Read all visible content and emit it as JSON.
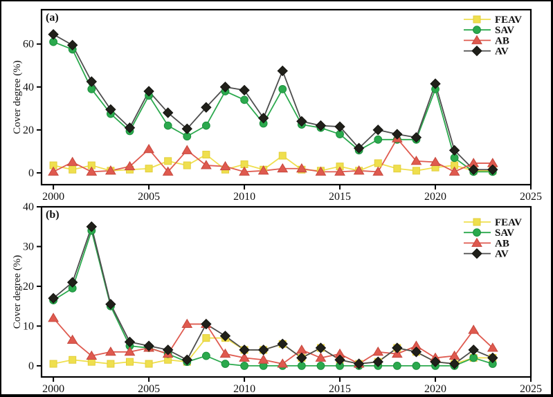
{
  "figure": {
    "background": "#ffffff",
    "frame_color": "#000000"
  },
  "chart_data": [
    {
      "panel_label": "(a)",
      "type": "line",
      "title": "",
      "xlabel": "",
      "ylabel": "Cover degree (%)",
      "grid": false,
      "legend_position": "top-right",
      "xlim": [
        1999.38,
        2025.0
      ],
      "ylim": [
        -5.5,
        76.0
      ],
      "xticks": [
        2000,
        2005,
        2010,
        2015,
        2020,
        2025
      ],
      "yticks": [
        0,
        20,
        40,
        60
      ],
      "x": [
        2000,
        2001,
        2002,
        2003,
        2004,
        2005,
        2006,
        2007,
        2008,
        2009,
        2010,
        2011,
        2012,
        2013,
        2014,
        2015,
        2016,
        2017,
        2018,
        2019,
        2020,
        2021,
        2022,
        2023
      ],
      "series": [
        {
          "name": "FEAV",
          "marker": "square",
          "color": "#EFDF4E",
          "edge": "#E2CE3B",
          "values": [
            3.5,
            1.5,
            3.5,
            1,
            1.5,
            2,
            5.5,
            3.5,
            8.5,
            1.5,
            4,
            1.5,
            8,
            1.5,
            1,
            3,
            1,
            4.5,
            2,
            1,
            2.5,
            3.5,
            1,
            1
          ]
        },
        {
          "name": "SAV",
          "marker": "circle",
          "color": "#2BA94D",
          "edge": "#1A8F3C",
          "values": [
            61,
            57.5,
            39,
            27.5,
            19.5,
            36,
            22,
            17,
            22,
            38,
            34,
            23,
            39,
            22.5,
            21,
            18,
            10.5,
            15.5,
            15.5,
            15.5,
            39,
            7,
            0.5,
            0.5
          ]
        },
        {
          "name": "AB",
          "marker": "triangle",
          "color": "#DF5A4F",
          "edge": "#C6463C",
          "values": [
            0.5,
            5,
            0.5,
            1,
            3,
            11,
            0.5,
            10.5,
            3.5,
            3,
            0.5,
            1,
            2,
            2,
            0.5,
            0.5,
            1,
            0.5,
            16,
            5.5,
            5,
            0.5,
            4.5,
            4.5
          ]
        },
        {
          "name": "AV",
          "marker": "diamond",
          "color": "#20201A",
          "edge": "#14140F",
          "line_color": "#4D4D4D",
          "values": [
            64.5,
            59.5,
            42.5,
            29.5,
            21,
            38,
            28,
            20.5,
            30.5,
            40,
            38.5,
            25.5,
            47.5,
            24,
            22,
            21.5,
            11.5,
            20,
            18,
            16.5,
            41.5,
            10.5,
            1.5,
            1.5
          ]
        }
      ]
    },
    {
      "panel_label": "(b)",
      "type": "line",
      "title": "",
      "xlabel": "",
      "ylabel": "Cover degree (%)",
      "grid": false,
      "legend_position": "top-right",
      "xlim": [
        1999.38,
        2025.0
      ],
      "ylim": [
        -2.8,
        40.0
      ],
      "xticks": [
        2000,
        2005,
        2010,
        2015,
        2020,
        2025
      ],
      "yticks": [
        0,
        10,
        20,
        30,
        40
      ],
      "x": [
        2000,
        2001,
        2002,
        2003,
        2004,
        2005,
        2006,
        2007,
        2008,
        2009,
        2010,
        2011,
        2012,
        2013,
        2014,
        2015,
        2016,
        2017,
        2018,
        2019,
        2020,
        2021,
        2022,
        2023
      ],
      "series": [
        {
          "name": "FEAV",
          "marker": "square",
          "color": "#EFDF4E",
          "edge": "#E2CE3B",
          "values": [
            0.5,
            1.5,
            1,
            0.5,
            1,
            0.5,
            1.5,
            1,
            7,
            7,
            4,
            4,
            5.5,
            2,
            4.5,
            1.5,
            0.5,
            1,
            4.5,
            3.5,
            1,
            0.5,
            2,
            2
          ]
        },
        {
          "name": "SAV",
          "marker": "circle",
          "color": "#2BA94D",
          "edge": "#1A8F3C",
          "values": [
            16.5,
            19.5,
            34,
            15,
            5,
            4.5,
            3,
            1,
            2.5,
            0.5,
            0,
            0,
            0,
            0,
            0,
            0,
            0,
            0,
            0,
            0,
            0,
            0,
            2,
            0.5
          ]
        },
        {
          "name": "AB",
          "marker": "triangle",
          "color": "#DF5A4F",
          "edge": "#C6463C",
          "values": [
            12,
            6.5,
            2.5,
            3.5,
            3.5,
            4.5,
            3,
            10.5,
            10.5,
            3,
            2,
            1.5,
            0.5,
            4,
            2,
            3,
            0.5,
            3.5,
            3,
            5,
            2,
            2.5,
            9,
            4.5
          ]
        },
        {
          "name": "AV",
          "marker": "diamond",
          "color": "#20201A",
          "edge": "#14140F",
          "line_color": "#4D4D4D",
          "values": [
            17,
            21,
            35,
            15.5,
            6,
            5,
            4,
            1.5,
            10.5,
            7.5,
            4,
            4,
            5.5,
            2,
            4.5,
            1.5,
            0.5,
            1,
            4.5,
            3.5,
            1,
            0.5,
            4,
            2
          ]
        }
      ]
    }
  ]
}
